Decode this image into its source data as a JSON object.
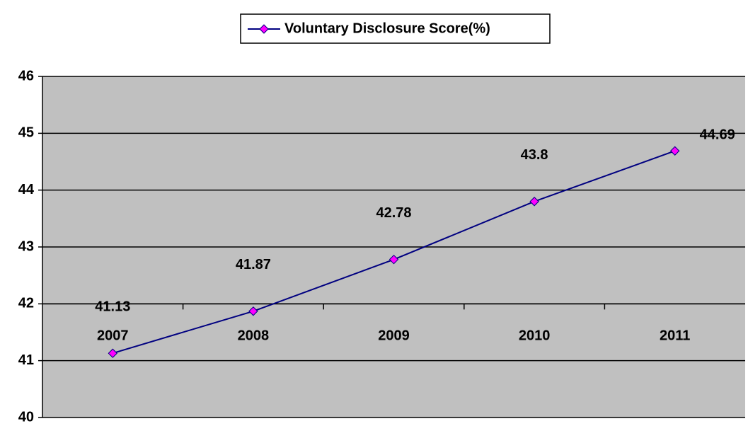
{
  "chart_data": {
    "type": "line",
    "categories": [
      "2007",
      "2008",
      "2009",
      "2010",
      "2011"
    ],
    "series": [
      {
        "name": "Voluntary Disclosure Score(%)",
        "color": "#000080",
        "marker_color": "#ff00ff",
        "values": [
          41.13,
          41.87,
          42.78,
          43.8,
          44.69
        ]
      }
    ],
    "ylim": [
      40,
      46
    ],
    "yticks": [
      40,
      41,
      42,
      43,
      44,
      45,
      46
    ],
    "grid": true,
    "xaxis_at": 42,
    "legend": "top",
    "background": "#c0c0c0"
  }
}
